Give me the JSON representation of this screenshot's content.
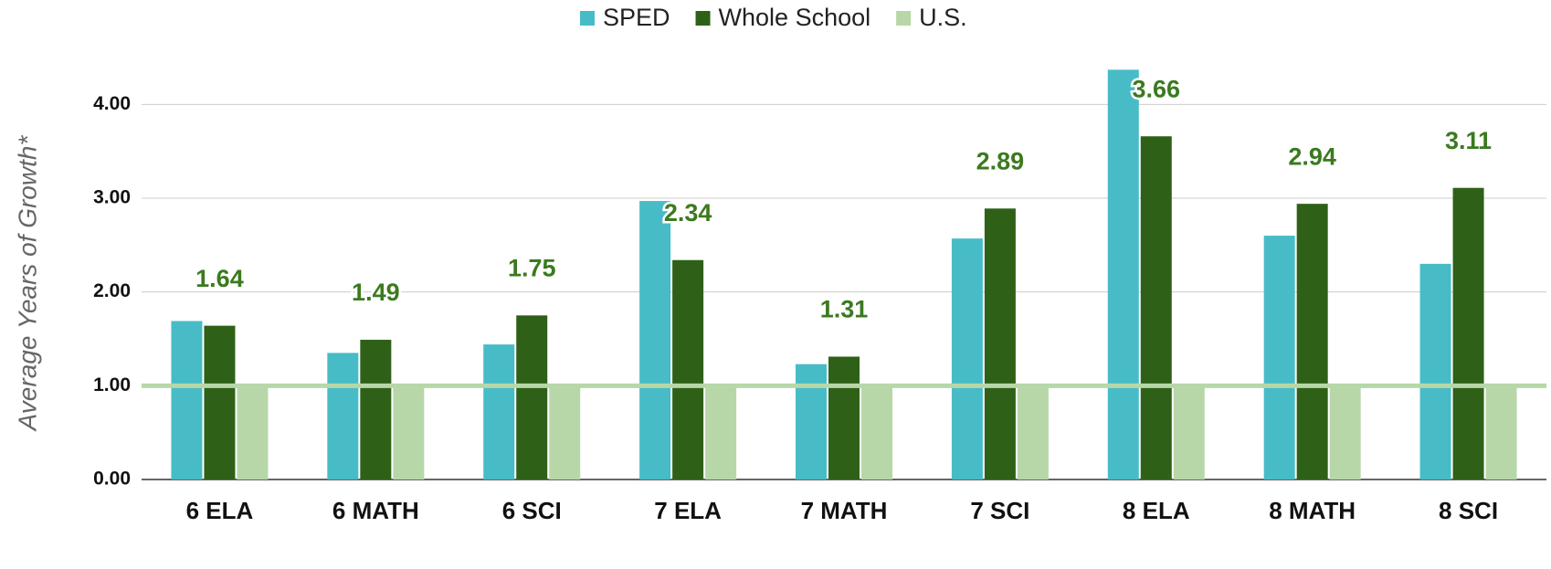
{
  "chart_data": {
    "type": "bar",
    "y_label": "Average Years of Growth*",
    "categories": [
      "6 ELA",
      "6 MATH",
      "6 SCI",
      "7 ELA",
      "7 MATH",
      "7 SCI",
      "8 ELA",
      "8 MATH",
      "8 SCI"
    ],
    "series": [
      {
        "name": "SPED",
        "color": "#47bcc7",
        "values": [
          1.69,
          1.35,
          1.44,
          2.97,
          1.23,
          2.57,
          4.37,
          2.6,
          2.3
        ]
      },
      {
        "name": "Whole School",
        "color": "#2e6117",
        "values": [
          1.64,
          1.49,
          1.75,
          2.34,
          1.31,
          2.89,
          3.66,
          2.94,
          3.11
        ],
        "value_labels": [
          "1.64",
          "1.49",
          "1.75",
          "2.34",
          "1.31",
          "2.89",
          "3.66",
          "2.94",
          "3.11"
        ]
      },
      {
        "name": "U.S.",
        "color": "#b7d7a8",
        "values": [
          1,
          1,
          1,
          1,
          1,
          1,
          1,
          1,
          1
        ]
      }
    ],
    "reference_line": {
      "value": 1,
      "color": "#b7d7a8"
    },
    "ylim": [
      0,
      4.5
    ],
    "yticks": [
      {
        "value": 0,
        "label": "0.00"
      },
      {
        "value": 1,
        "label": "1.00"
      },
      {
        "value": 2,
        "label": "2.00"
      },
      {
        "value": 3,
        "label": "3.00"
      },
      {
        "value": 4,
        "label": "4.00"
      }
    ],
    "grid": true,
    "legend": "top"
  }
}
